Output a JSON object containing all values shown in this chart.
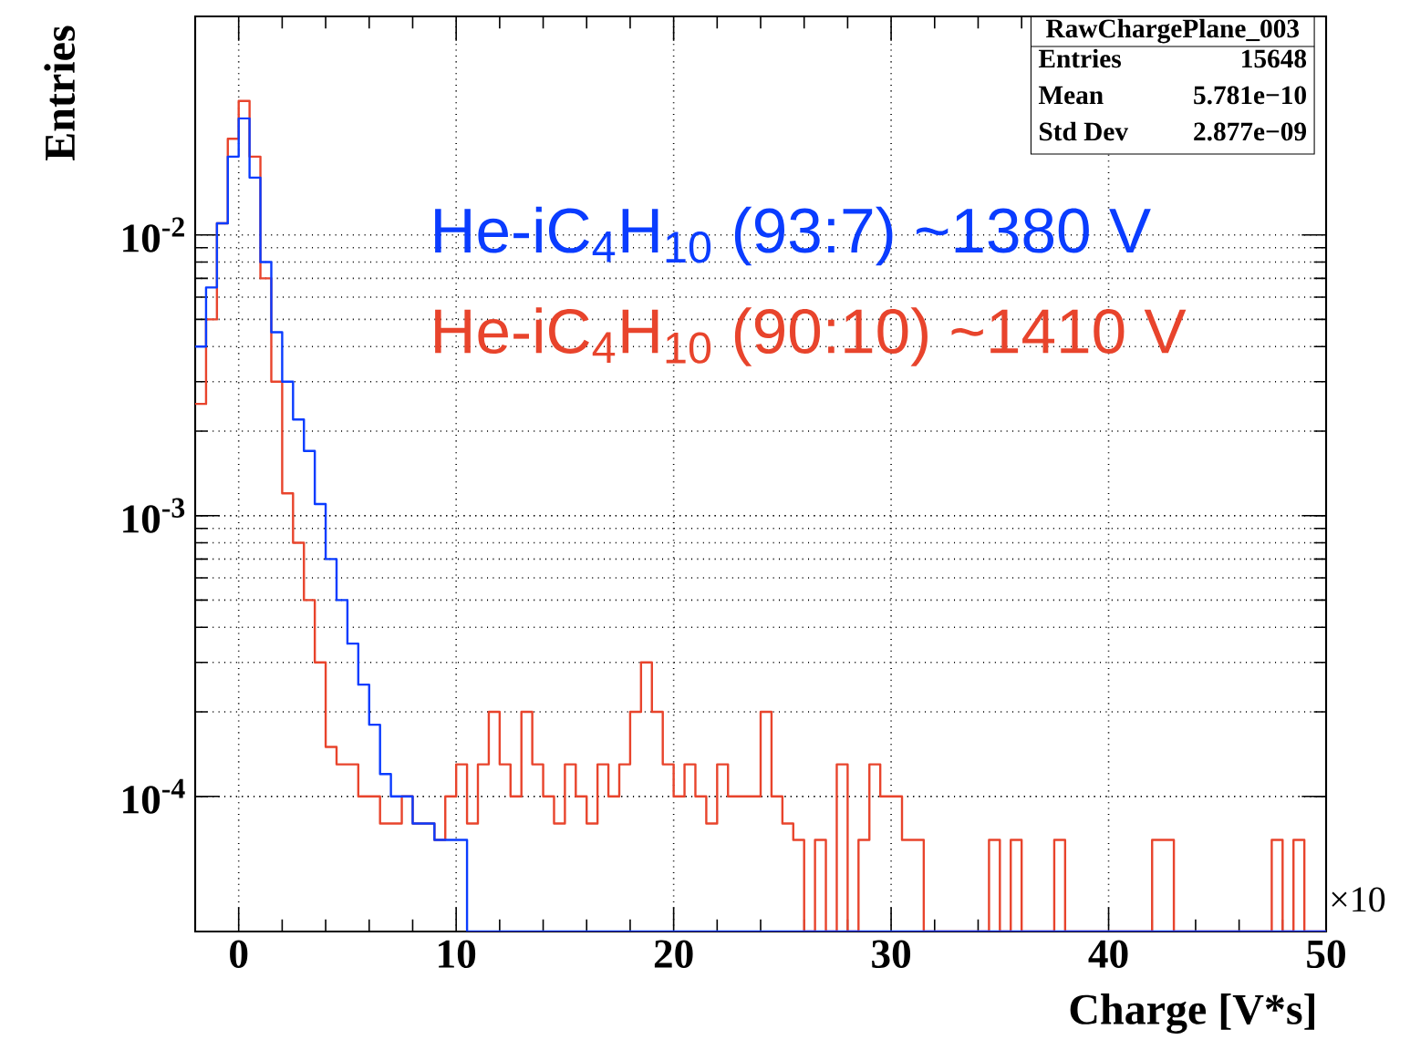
{
  "chart_data": {
    "type": "histogram",
    "xlabel": "Charge [V*s]",
    "ylabel": "Entries",
    "log": "y",
    "grid": true,
    "xlim": [
      -2,
      50
    ],
    "ylim": [
      3.3e-05,
      0.06
    ],
    "xticks": [
      0,
      10,
      20,
      30,
      40,
      50
    ],
    "yticks": [
      {
        "value": 0.0001,
        "label": "10$^{-4}$"
      },
      {
        "value": 0.001,
        "label": "10$^{-3}$"
      },
      {
        "value": 0.01,
        "label": "10$^{-2}$"
      }
    ],
    "bins": [
      -2,
      -1.5,
      -1,
      -0.5,
      0,
      0.5,
      1,
      1.5,
      2,
      2.5,
      3,
      3.5,
      4,
      4.5,
      5,
      5.5,
      6,
      6.5,
      7,
      7.5,
      8,
      8.5,
      9,
      9.5,
      10,
      10.5,
      11,
      11.5,
      12,
      12.5,
      13,
      13.5,
      14,
      14.5,
      15,
      15.5,
      16,
      16.5,
      17,
      17.5,
      18,
      18.5,
      19,
      19.5,
      20,
      20.5,
      21,
      21.5,
      22,
      22.5,
      23,
      23.5,
      24,
      24.5,
      25,
      25.5,
      26,
      26.5,
      27,
      27.5,
      28,
      28.5,
      29,
      29.5,
      30,
      30.5,
      31,
      31.5,
      32,
      32.5,
      33,
      33.5,
      34,
      34.5,
      35,
      35.5,
      36,
      36.5,
      37,
      37.5,
      38,
      38.5,
      39,
      39.5,
      40,
      40.5,
      41,
      41.5,
      42,
      42.5,
      43,
      43.5,
      44,
      44.5,
      45,
      45.5,
      46,
      46.5,
      47,
      47.5,
      48,
      48.5,
      49,
      49.5,
      50
    ],
    "series": [
      {
        "name": "He-iC$_{4}$H$_{10}$ (93:7)      ~1380 V",
        "color": "#0a3cff",
        "values": [
          0.004,
          0.0065,
          0.011,
          0.019,
          0.026,
          0.016,
          0.008,
          0.0045,
          0.003,
          0.0022,
          0.0017,
          0.0011,
          0.0007,
          0.0005,
          0.00035,
          0.00025,
          0.00018,
          0.00012,
          0.0001,
          0.0001,
          8e-05,
          8e-05,
          7e-05,
          7e-05,
          7e-05,
          null,
          null,
          null,
          null,
          null,
          null,
          null,
          null,
          null,
          null,
          null,
          null,
          null,
          null,
          null,
          null,
          null,
          null,
          null,
          null,
          null,
          null,
          null,
          null,
          null,
          null,
          null,
          null,
          null,
          null,
          null,
          null,
          null,
          null,
          null,
          null,
          null,
          null,
          null,
          null,
          null,
          null,
          null,
          null,
          null,
          null,
          null,
          null,
          null,
          null,
          null,
          null,
          null,
          null,
          null,
          null,
          null,
          null,
          null,
          null,
          null,
          null,
          null,
          null,
          null,
          null,
          null,
          null,
          null,
          null,
          null,
          null,
          null,
          null,
          null,
          null,
          null,
          null,
          null
        ]
      },
      {
        "name": "He-iC$_{4}$H$_{10}$ (90:10)   ~1410 V",
        "color": "#e8442c",
        "values": [
          0.0025,
          0.005,
          0.011,
          0.022,
          0.03,
          0.019,
          0.007,
          0.003,
          0.0012,
          0.0008,
          0.0005,
          0.0003,
          0.00015,
          0.00013,
          0.00013,
          0.0001,
          0.0001,
          8e-05,
          8e-05,
          0.0001,
          8e-05,
          8e-05,
          7e-05,
          0.0001,
          0.00013,
          8e-05,
          0.00013,
          0.0002,
          0.00013,
          0.0001,
          0.0002,
          0.00013,
          0.0001,
          8e-05,
          0.00013,
          0.0001,
          8e-05,
          0.00013,
          0.0001,
          0.00013,
          0.0002,
          0.0003,
          0.0002,
          0.00013,
          0.0001,
          0.00013,
          0.0001,
          8e-05,
          0.00013,
          0.0001,
          0.0001,
          0.0001,
          0.0002,
          0.0001,
          8e-05,
          7e-05,
          null,
          7e-05,
          null,
          0.00013,
          null,
          7e-05,
          0.00013,
          0.0001,
          0.0001,
          7e-05,
          7e-05,
          null,
          null,
          null,
          null,
          null,
          null,
          7e-05,
          null,
          7e-05,
          null,
          null,
          null,
          7e-05,
          null,
          null,
          null,
          null,
          null,
          null,
          null,
          null,
          7e-05,
          7e-05,
          null,
          null,
          null,
          null,
          null,
          null,
          null,
          null,
          null,
          7e-05,
          null,
          7e-05,
          null,
          null
        ]
      }
    ],
    "annotations": [
      "RawChargePlane_003",
      "Entries",
      "15648",
      "Mean",
      "5.781e−10",
      "Std Dev",
      "2.877e−09",
      "×10"
    ]
  }
}
